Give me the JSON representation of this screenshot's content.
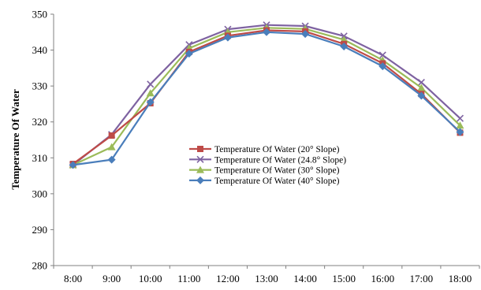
{
  "chart_data": {
    "type": "line",
    "title": "",
    "xlabel": "",
    "ylabel": "Temperature Of Water",
    "categories": [
      "8:00",
      "9:00",
      "10:00",
      "11:00",
      "12:00",
      "13:00",
      "14:00",
      "15:00",
      "16:00",
      "17:00",
      "18:00"
    ],
    "ylim": [
      280,
      350
    ],
    "yticks": [
      "280",
      "290",
      "300",
      "310",
      "320",
      "330",
      "340",
      "350"
    ],
    "grid": false,
    "legend_position": "center",
    "series": [
      {
        "name": "Temperature Of Water (20° Slope)",
        "color": "#be4b48",
        "marker": "square",
        "values": [
          308.3,
          316.2,
          325.2,
          339.5,
          344.0,
          345.5,
          345.2,
          341.7,
          336.3,
          327.8,
          317.0
        ]
      },
      {
        "name": "Temperature Of Water (24.8° Slope)",
        "color": "#7e62a1",
        "marker": "x",
        "values": [
          308.0,
          316.5,
          330.5,
          341.5,
          345.8,
          347.0,
          346.7,
          343.9,
          338.6,
          331.0,
          321.0
        ]
      },
      {
        "name": "Temperature Of Water (30° Slope)",
        "color": "#9bbb59",
        "marker": "triangle",
        "values": [
          308.0,
          313.0,
          328.0,
          340.5,
          345.0,
          346.2,
          345.9,
          342.9,
          337.2,
          329.5,
          319.0
        ]
      },
      {
        "name": "Temperature Of Water (40° Slope)",
        "color": "#4a7ebb",
        "marker": "diamond",
        "values": [
          308.0,
          309.5,
          325.5,
          339.0,
          343.5,
          345.0,
          344.5,
          341.0,
          335.5,
          327.3,
          317.2
        ]
      }
    ]
  }
}
